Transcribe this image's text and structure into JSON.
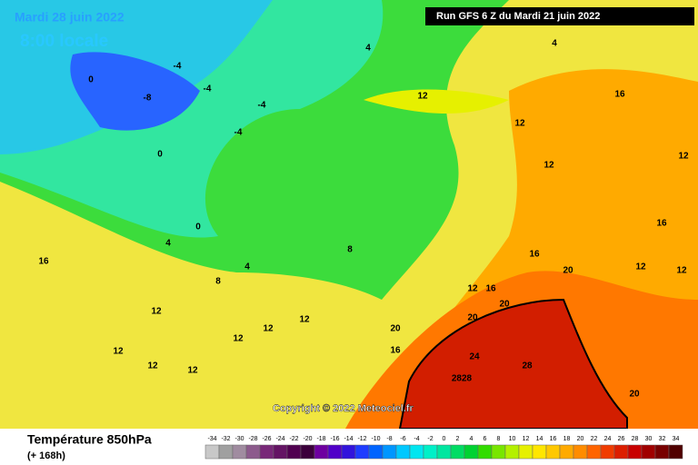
{
  "header": {
    "date": "Mardi 28 juin 2022",
    "time": "8:00 locale",
    "run": "Run GFS 6 Z du Mardi 21 juin 2022",
    "copyright": "Copyright © 2022 Meteociel.fr"
  },
  "legend": {
    "title": "Température 850hPa",
    "subtitle": "(+ 168h)",
    "scale": [
      -34,
      -32,
      -30,
      -28,
      -26,
      -24,
      -22,
      -20,
      -18,
      -16,
      -14,
      -12,
      -10,
      -8,
      -6,
      -4,
      -2,
      0,
      2,
      4,
      6,
      8,
      10,
      12,
      14,
      16,
      18,
      20,
      22,
      24,
      26,
      28,
      30,
      32,
      34
    ],
    "colors": [
      "#c8c8c8",
      "#a0a0a0",
      "#a08ca0",
      "#8c5a8c",
      "#782878",
      "#641464",
      "#500050",
      "#3c003c",
      "#6e00a0",
      "#5000c8",
      "#3214dc",
      "#1e3cff",
      "#0064ff",
      "#0096ff",
      "#00c8ff",
      "#00e6f0",
      "#00f0c8",
      "#00e6a0",
      "#00dc64",
      "#00d232",
      "#32dc00",
      "#78e600",
      "#b4f000",
      "#e6f000",
      "#ffe600",
      "#ffc800",
      "#ffaa00",
      "#ff8c00",
      "#ff6400",
      "#f03c00",
      "#dc1e00",
      "#c80000",
      "#a00000",
      "#780000",
      "#500000"
    ]
  },
  "contour_labels": [
    4,
    -4,
    0,
    -8,
    -4,
    4,
    -4,
    0,
    0,
    -4,
    4,
    12,
    16,
    12,
    12,
    12,
    16,
    16,
    12,
    12,
    12,
    12,
    12,
    8,
    8,
    16,
    20,
    20,
    20,
    20,
    24,
    28,
    2828,
    20,
    16,
    12,
    12,
    12,
    12,
    12,
    16,
    4
  ]
}
